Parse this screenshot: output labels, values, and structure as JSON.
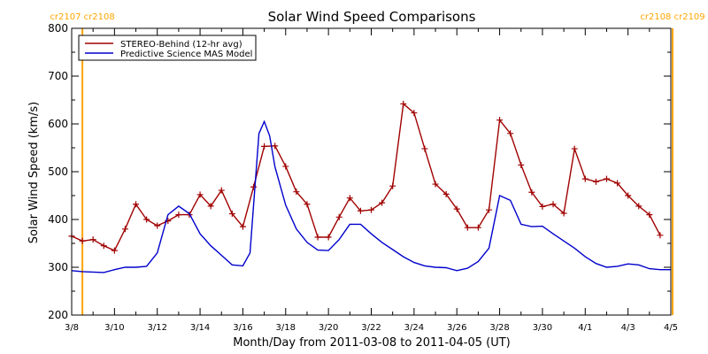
{
  "chart_data": {
    "type": "line",
    "title": "Solar Wind Speed Comparisons",
    "xlabel": "Month/Day from 2011-03-08 to 2011-04-05 (UT)",
    "ylabel": "Solar Wind Speed (km/s)",
    "xlim": [
      "2011-03-08",
      "2011-04-05"
    ],
    "ylim": [
      200,
      800
    ],
    "y_ticks": [
      200,
      300,
      400,
      500,
      600,
      700,
      800
    ],
    "x_ticks": [
      {
        "date": "2011-03-08",
        "label": "3/8"
      },
      {
        "date": "2011-03-10",
        "label": "3/10"
      },
      {
        "date": "2011-03-12",
        "label": "3/12"
      },
      {
        "date": "2011-03-14",
        "label": "3/14"
      },
      {
        "date": "2011-03-16",
        "label": "3/16"
      },
      {
        "date": "2011-03-18",
        "label": "3/18"
      },
      {
        "date": "2011-03-20",
        "label": "3/20"
      },
      {
        "date": "2011-03-22",
        "label": "3/22"
      },
      {
        "date": "2011-03-24",
        "label": "3/24"
      },
      {
        "date": "2011-03-26",
        "label": "3/26"
      },
      {
        "date": "2011-03-28",
        "label": "3/28"
      },
      {
        "date": "2011-03-30",
        "label": "3/30"
      },
      {
        "date": "2011-04-01",
        "label": "4/1"
      },
      {
        "date": "2011-04-03",
        "label": "4/3"
      },
      {
        "date": "2011-04-05",
        "label": "4/5"
      }
    ],
    "grid": false,
    "legend": "top-left",
    "rotation_markers": [
      {
        "date": "2011-03-08 12:00",
        "labels": [
          "cr2107",
          "cr2108"
        ],
        "color": "#ffa500"
      },
      {
        "date": "2011-04-05 02:00",
        "labels": [
          "cr2108",
          "cr2109"
        ],
        "color": "#ffa500"
      }
    ],
    "series": [
      {
        "name": "STEREO-Behind (12-hr avg)",
        "color": "#a00000",
        "markers": "plus",
        "points": [
          [
            "2011-03-08 00:00",
            365
          ],
          [
            "2011-03-08 12:00",
            355
          ],
          [
            "2011-03-09 00:00",
            358
          ],
          [
            "2011-03-09 12:00",
            345
          ],
          [
            "2011-03-10 00:00",
            335
          ],
          [
            "2011-03-10 12:00",
            380
          ],
          [
            "2011-03-11 00:00",
            432
          ],
          [
            "2011-03-11 12:00",
            400
          ],
          [
            "2011-03-12 00:00",
            387
          ],
          [
            "2011-03-12 12:00",
            397
          ],
          [
            "2011-03-13 00:00",
            410
          ],
          [
            "2011-03-13 12:00",
            410
          ],
          [
            "2011-03-14 00:00",
            452
          ],
          [
            "2011-03-14 12:00",
            428
          ],
          [
            "2011-03-15 00:00",
            461
          ],
          [
            "2011-03-15 12:00",
            412
          ],
          [
            "2011-03-16 00:00",
            385
          ],
          [
            "2011-03-16 12:00",
            468
          ],
          [
            "2011-03-17 00:00",
            553
          ],
          [
            "2011-03-17 12:00",
            554
          ],
          [
            "2011-03-18 00:00",
            511
          ],
          [
            "2011-03-18 12:00",
            458
          ],
          [
            "2011-03-19 00:00",
            432
          ],
          [
            "2011-03-19 12:00",
            363
          ],
          [
            "2011-03-20 00:00",
            363
          ],
          [
            "2011-03-20 12:00",
            405
          ],
          [
            "2011-03-21 00:00",
            445
          ],
          [
            "2011-03-21 12:00",
            418
          ],
          [
            "2011-03-22 00:00",
            420
          ],
          [
            "2011-03-22 12:00",
            435
          ],
          [
            "2011-03-23 00:00",
            470
          ],
          [
            "2011-03-23 12:00",
            642
          ],
          [
            "2011-03-24 00:00",
            623
          ],
          [
            "2011-03-24 12:00",
            548
          ],
          [
            "2011-03-25 00:00",
            474
          ],
          [
            "2011-03-25 12:00",
            453
          ],
          [
            "2011-03-26 00:00",
            422
          ],
          [
            "2011-03-26 12:00",
            383
          ],
          [
            "2011-03-27 00:00",
            383
          ],
          [
            "2011-03-27 12:00",
            420
          ],
          [
            "2011-03-28 00:00",
            608
          ],
          [
            "2011-03-28 12:00",
            580
          ],
          [
            "2011-03-29 00:00",
            514
          ],
          [
            "2011-03-29 12:00",
            457
          ],
          [
            "2011-03-30 00:00",
            427
          ],
          [
            "2011-03-30 12:00",
            432
          ],
          [
            "2011-03-31 00:00",
            413
          ],
          [
            "2011-03-31 12:00",
            548
          ],
          [
            "2011-04-01 00:00",
            485
          ],
          [
            "2011-04-01 12:00",
            479
          ],
          [
            "2011-04-02 00:00",
            485
          ],
          [
            "2011-04-02 12:00",
            476
          ],
          [
            "2011-04-03 00:00",
            450
          ],
          [
            "2011-04-03 12:00",
            428
          ],
          [
            "2011-04-04 00:00",
            410
          ],
          [
            "2011-04-04 12:00",
            367
          ]
        ]
      },
      {
        "name": "Predictive Science MAS Model",
        "color": "#0000cc",
        "markers": "none",
        "points": [
          [
            "2011-03-08 00:00",
            293
          ],
          [
            "2011-03-08 12:00",
            291
          ],
          [
            "2011-03-09 00:00",
            290
          ],
          [
            "2011-03-09 12:00",
            289
          ],
          [
            "2011-03-10 00:00",
            295
          ],
          [
            "2011-03-10 12:00",
            300
          ],
          [
            "2011-03-11 00:00",
            300
          ],
          [
            "2011-03-11 12:00",
            302
          ],
          [
            "2011-03-12 00:00",
            330
          ],
          [
            "2011-03-12 12:00",
            410
          ],
          [
            "2011-03-13 00:00",
            428
          ],
          [
            "2011-03-13 12:00",
            412
          ],
          [
            "2011-03-14 00:00",
            370
          ],
          [
            "2011-03-14 12:00",
            345
          ],
          [
            "2011-03-15 00:00",
            325
          ],
          [
            "2011-03-15 12:00",
            305
          ],
          [
            "2011-03-16 00:00",
            303
          ],
          [
            "2011-03-16 08:00",
            330
          ],
          [
            "2011-03-16 18:00",
            580
          ],
          [
            "2011-03-17 00:00",
            605
          ],
          [
            "2011-03-17 06:00",
            575
          ],
          [
            "2011-03-17 12:00",
            510
          ],
          [
            "2011-03-18 00:00",
            430
          ],
          [
            "2011-03-18 12:00",
            380
          ],
          [
            "2011-03-19 00:00",
            352
          ],
          [
            "2011-03-19 12:00",
            336
          ],
          [
            "2011-03-20 00:00",
            335
          ],
          [
            "2011-03-20 12:00",
            358
          ],
          [
            "2011-03-21 00:00",
            390
          ],
          [
            "2011-03-21 12:00",
            390
          ],
          [
            "2011-03-22 00:00",
            370
          ],
          [
            "2011-03-22 12:00",
            352
          ],
          [
            "2011-03-23 00:00",
            337
          ],
          [
            "2011-03-23 12:00",
            322
          ],
          [
            "2011-03-24 00:00",
            310
          ],
          [
            "2011-03-24 12:00",
            303
          ],
          [
            "2011-03-25 00:00",
            300
          ],
          [
            "2011-03-25 12:00",
            299
          ],
          [
            "2011-03-26 00:00",
            293
          ],
          [
            "2011-03-26 12:00",
            298
          ],
          [
            "2011-03-27 00:00",
            312
          ],
          [
            "2011-03-27 12:00",
            340
          ],
          [
            "2011-03-28 00:00",
            450
          ],
          [
            "2011-03-28 12:00",
            440
          ],
          [
            "2011-03-29 00:00",
            390
          ],
          [
            "2011-03-29 12:00",
            385
          ],
          [
            "2011-03-30 00:00",
            386
          ],
          [
            "2011-03-30 12:00",
            370
          ],
          [
            "2011-03-31 00:00",
            355
          ],
          [
            "2011-03-31 12:00",
            340
          ],
          [
            "2011-04-01 00:00",
            322
          ],
          [
            "2011-04-01 12:00",
            308
          ],
          [
            "2011-04-02 00:00",
            300
          ],
          [
            "2011-04-02 12:00",
            302
          ],
          [
            "2011-04-03 00:00",
            307
          ],
          [
            "2011-04-03 12:00",
            305
          ],
          [
            "2011-04-04 00:00",
            297
          ],
          [
            "2011-04-04 12:00",
            295
          ],
          [
            "2011-04-05 00:00",
            295
          ]
        ]
      }
    ]
  }
}
